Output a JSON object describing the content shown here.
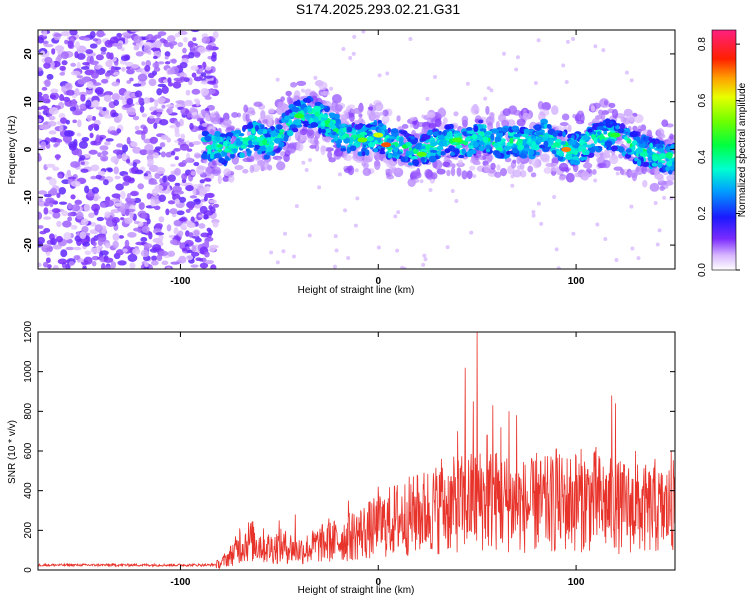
{
  "title": "S174.2025.293.02.21.G31",
  "chart_data": [
    {
      "type": "heatmap",
      "name": "spectrogram",
      "xlabel": "Height of straight line (km)",
      "ylabel": "Frequency (Hz)",
      "xlim": [
        -172,
        150
      ],
      "ylim": [
        -25,
        25
      ],
      "xticks": [
        -100,
        0,
        100
      ],
      "yticks": [
        -20,
        -10,
        0,
        10,
        20
      ],
      "colorbar": {
        "label": "Normalized spectral amplitude",
        "range": [
          0,
          0.85
        ],
        "ticks": [
          0,
          0.2,
          0.4,
          0.6,
          0.8
        ],
        "colormap": "rainbow (white/purple low to red/magenta high)"
      },
      "track": {
        "description": "Signal ridge centre frequency vs height",
        "points": [
          [
            -85,
            1
          ],
          [
            -78,
            0
          ],
          [
            -70,
            1
          ],
          [
            -62,
            3
          ],
          [
            -55,
            1
          ],
          [
            -48,
            4
          ],
          [
            -42,
            7
          ],
          [
            -36,
            8
          ],
          [
            -30,
            7
          ],
          [
            -24,
            5
          ],
          [
            -18,
            3
          ],
          [
            -12,
            2
          ],
          [
            -6,
            2
          ],
          [
            0,
            3
          ],
          [
            6,
            1
          ],
          [
            12,
            1
          ],
          [
            20,
            -1
          ],
          [
            28,
            1
          ],
          [
            36,
            2
          ],
          [
            44,
            1
          ],
          [
            52,
            3
          ],
          [
            60,
            1
          ],
          [
            68,
            2
          ],
          [
            76,
            1
          ],
          [
            84,
            3
          ],
          [
            92,
            1
          ],
          [
            100,
            0
          ],
          [
            108,
            2
          ],
          [
            116,
            3
          ],
          [
            124,
            2
          ],
          [
            132,
            0
          ],
          [
            140,
            -1
          ],
          [
            150,
            -2
          ]
        ]
      }
    },
    {
      "type": "line",
      "name": "snr",
      "xlabel": "Height of straight line (km)",
      "ylabel": "SNR (10 * v/v)",
      "xlim": [
        -172,
        150
      ],
      "ylim": [
        0,
        1200
      ],
      "xticks": [
        -100,
        0,
        100
      ],
      "yticks": [
        0,
        200,
        400,
        600,
        800,
        1000,
        1200
      ],
      "series": [
        {
          "name": "SNR",
          "color": "#e8332b",
          "envelope": {
            "x": [
              -172,
              -85,
              -80,
              -75,
              -70,
              -65,
              -60,
              -55,
              -50,
              -45,
              -40,
              -35,
              -30,
              -25,
              -20,
              -15,
              -10,
              -5,
              0,
              5,
              10,
              15,
              20,
              25,
              30,
              35,
              40,
              45,
              50,
              55,
              60,
              65,
              70,
              75,
              80,
              85,
              90,
              95,
              100,
              105,
              110,
              115,
              120,
              125,
              130,
              135,
              140,
              145,
              150
            ],
            "y": [
              25,
              25,
              30,
              70,
              120,
              150,
              130,
              110,
              120,
              115,
              100,
              110,
              130,
              140,
              150,
              165,
              185,
              200,
              215,
              240,
              260,
              270,
              280,
              300,
              310,
              320,
              330,
              340,
              350,
              360,
              350,
              340,
              330,
              320,
              325,
              330,
              335,
              340,
              350,
              355,
              345,
              330,
              320,
              315,
              310,
              305,
              300,
              300,
              320
            ]
          },
          "peaks": [
            [
              -70,
              210
            ],
            [
              -50,
              250
            ],
            [
              -42,
              280
            ],
            [
              -25,
              260
            ],
            [
              -15,
              350
            ],
            [
              0,
              420
            ],
            [
              20,
              470
            ],
            [
              32,
              560
            ],
            [
              40,
              700
            ],
            [
              44,
              1020
            ],
            [
              48,
              850
            ],
            [
              50,
              1200
            ],
            [
              55,
              680
            ],
            [
              58,
              830
            ],
            [
              62,
              720
            ],
            [
              66,
              800
            ],
            [
              70,
              780
            ],
            [
              80,
              590
            ],
            [
              90,
              610
            ],
            [
              100,
              570
            ],
            [
              110,
              620
            ],
            [
              118,
              880
            ],
            [
              120,
              840
            ],
            [
              130,
              600
            ],
            [
              140,
              560
            ],
            [
              148,
              600
            ]
          ]
        }
      ]
    }
  ]
}
